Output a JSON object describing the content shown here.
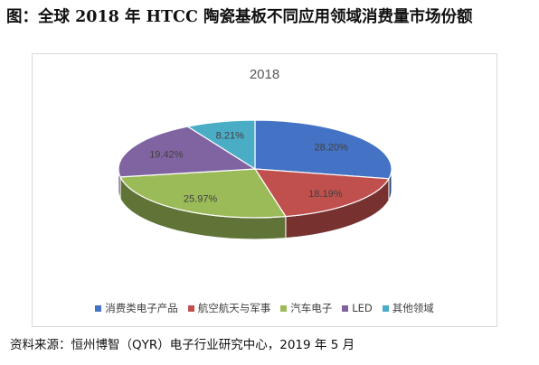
{
  "heading": "图：全球 2018 年 HTCC 陶瓷基板不同应用领域消费量市场份额",
  "source_note": "资料来源：恒州博智（QYR）电子行业研究中心，2019 年 5 月",
  "colors": {
    "consumer": "#4472c4",
    "aerospace": "#c0504d",
    "auto": "#9bbb59",
    "led": "#8064a2",
    "other": "#4bacc6"
  },
  "chart_data": {
    "type": "pie",
    "title": "2018",
    "categories": [
      "消费类电子产品",
      "航空航天与军事",
      "汽车电子",
      "LED",
      "其他领域"
    ],
    "values": [
      28.2,
      18.19,
      25.97,
      19.42,
      8.21
    ],
    "data_labels": [
      "28.20%",
      "18.19%",
      "25.97%",
      "19.42%",
      "8.21%"
    ],
    "legend_position": "bottom",
    "style": "3d"
  }
}
